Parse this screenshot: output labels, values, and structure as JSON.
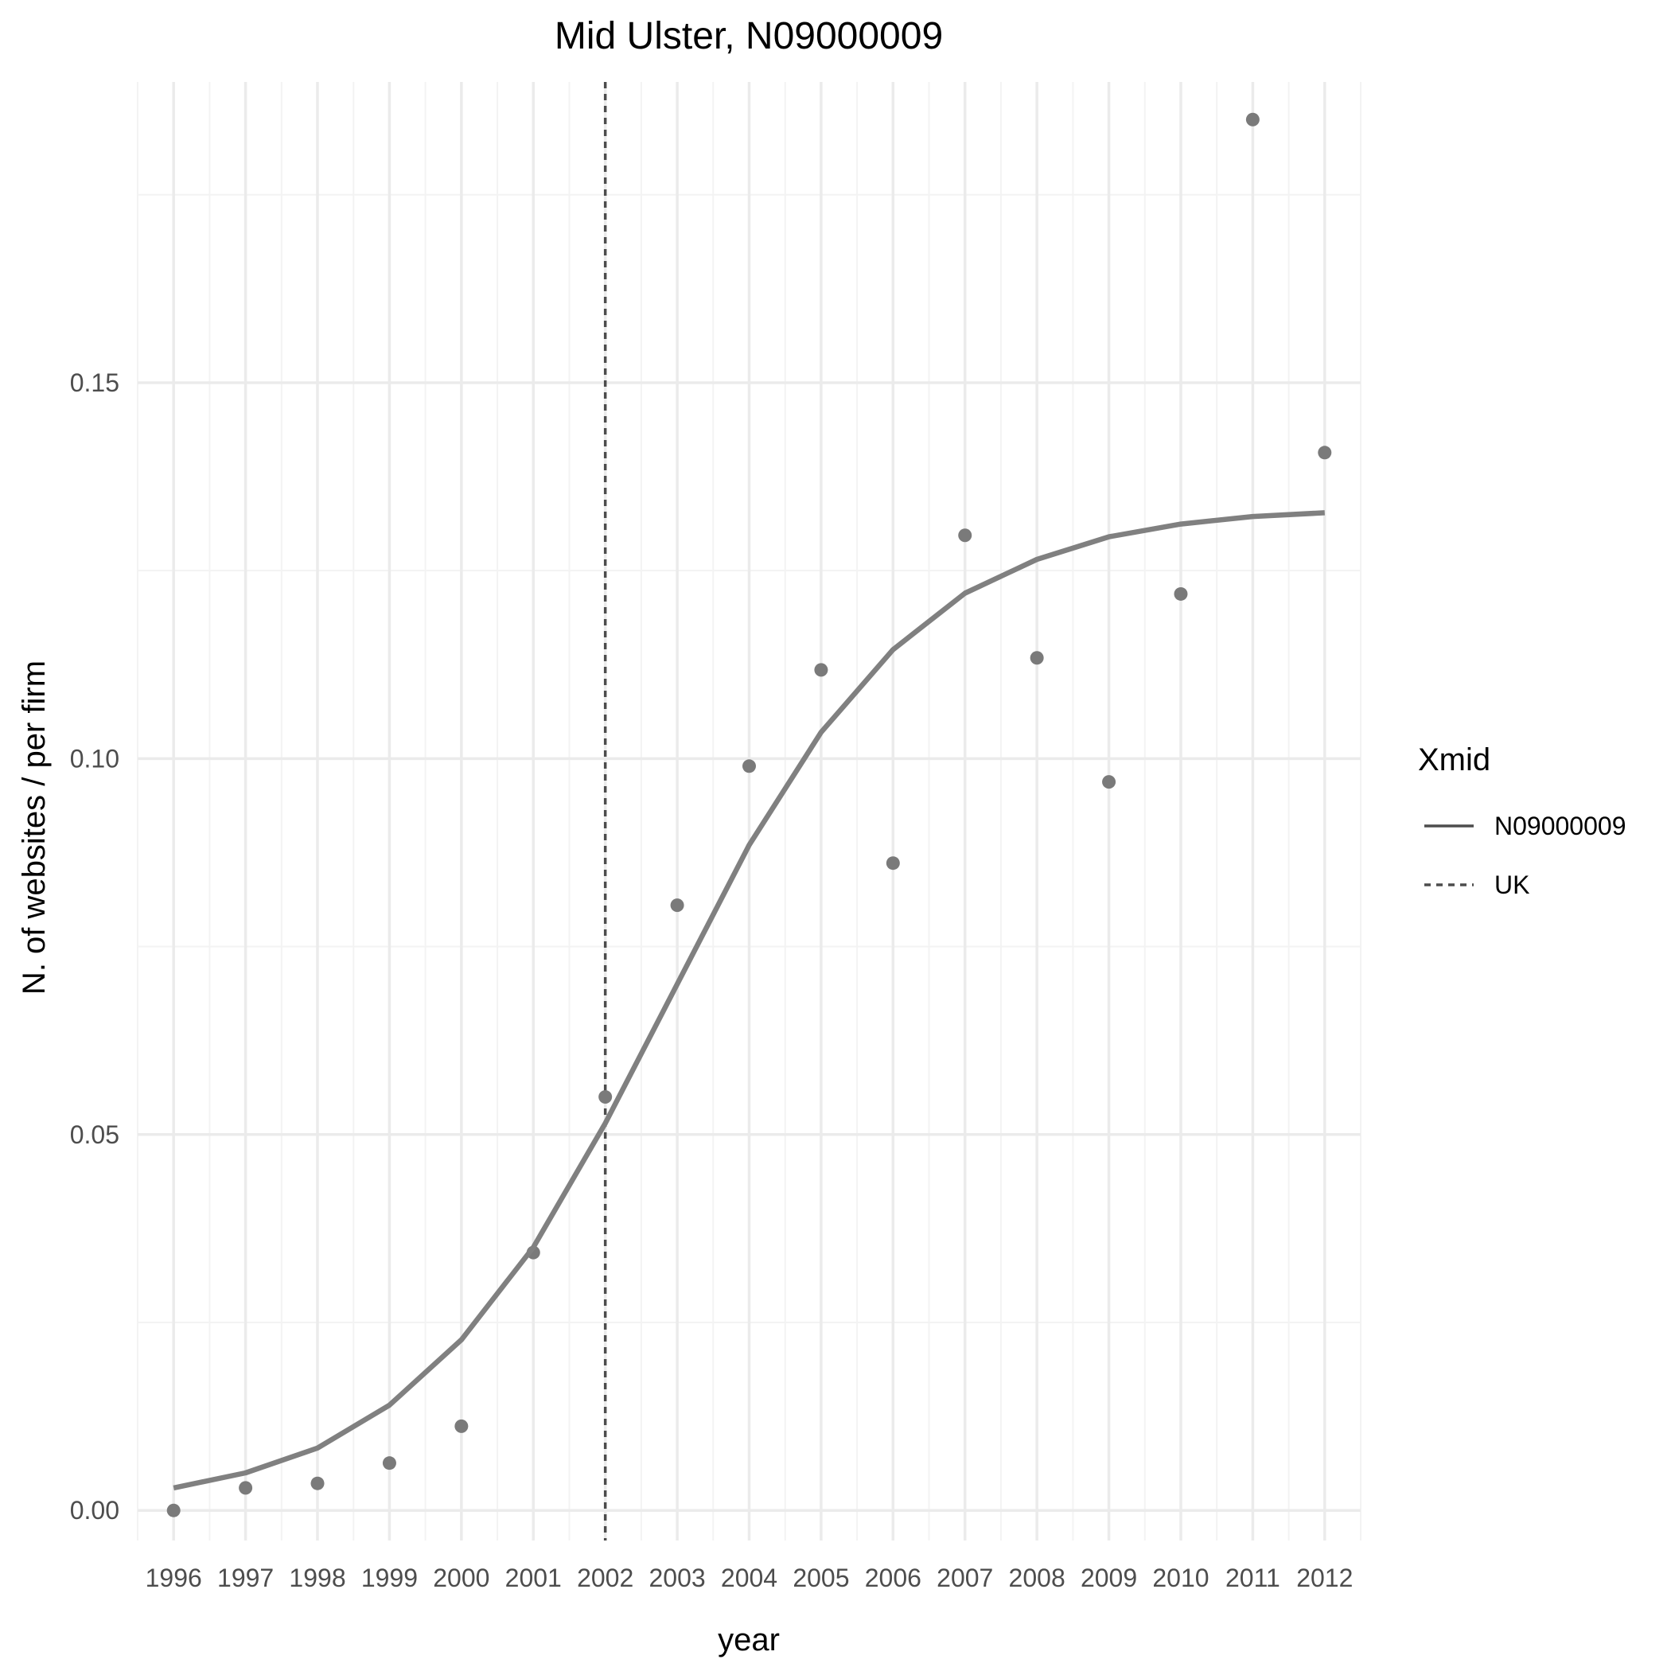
{
  "chart_data": {
    "type": "line",
    "title": "Mid Ulster, N09000009",
    "xlabel": "year",
    "ylabel": "N. of websites / per firm",
    "x": [
      1996,
      1997,
      1998,
      1999,
      2000,
      2001,
      2002,
      2003,
      2004,
      2005,
      2006,
      2007,
      2008,
      2009,
      2010,
      2011,
      2012
    ],
    "xlim": [
      1995.5,
      2012.5
    ],
    "ylim": [
      -0.004,
      0.19
    ],
    "y_ticks": [
      0.0,
      0.05,
      0.1,
      0.15
    ],
    "y_tick_labels": [
      "0.00",
      "0.05",
      "0.10",
      "0.15"
    ],
    "grid": true,
    "series": [
      {
        "name": "N09000009",
        "kind": "line",
        "linestyle": "solid",
        "color": "#808080",
        "values": [
          0.003,
          0.005,
          0.0083,
          0.014,
          0.0227,
          0.035,
          0.0515,
          0.07,
          0.0885,
          0.1035,
          0.1145,
          0.122,
          0.1265,
          0.1295,
          0.1312,
          0.1322,
          0.1327
        ]
      },
      {
        "kind": "points",
        "color": "#7a7a7a",
        "values": [
          0.0,
          0.003,
          0.0036,
          0.0063,
          0.0112,
          0.0343,
          0.055,
          0.0805,
          0.099,
          0.1118,
          0.0861,
          0.1297,
          0.1134,
          0.0969,
          0.1219,
          0.185,
          0.1407
        ]
      },
      {
        "name": "UK",
        "kind": "vline",
        "linestyle": "dotted",
        "color": "#4d4d4d",
        "x": 2002
      }
    ],
    "legend": {
      "title": "Xmid",
      "position": "right",
      "entries": [
        {
          "label": "N09000009",
          "linestyle": "solid"
        },
        {
          "label": "UK",
          "linestyle": "dotted"
        }
      ]
    }
  }
}
